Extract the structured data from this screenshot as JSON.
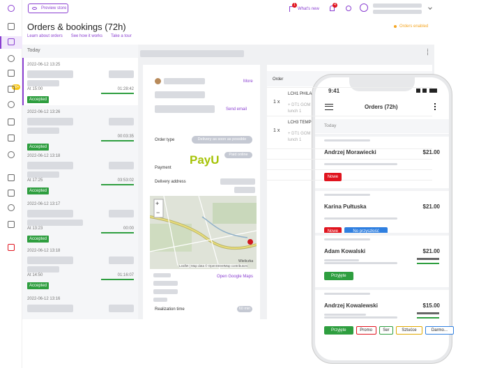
{
  "topbar": {
    "preview_store": "Preview store",
    "whats_new": "What's new",
    "whats_new_badge": "1",
    "bell_badge": "4"
  },
  "sidebar": {
    "badge": "50+"
  },
  "header": {
    "title": "Orders & bookings (72h)",
    "links": [
      "Learn about orders",
      "See how it works",
      "Take a tour"
    ],
    "status": "Orders enabled"
  },
  "orders_list": {
    "section": "Today",
    "orders": [
      {
        "date": "2022-06-12 13:25",
        "time": "At 15:00",
        "timer": "01:28:42",
        "status": "Accepted"
      },
      {
        "date": "2022-06-12 13:26",
        "timer": "00:03:35",
        "status": "Accepted"
      },
      {
        "date": "2022-06-12 13:18",
        "time": "At 17:25",
        "timer": "03:53:02",
        "status": "Accepted"
      },
      {
        "date": "2022-06-12 13:17",
        "time": "At 13:23",
        "timer": "00:00",
        "status": "Accepted"
      },
      {
        "date": "2022-06-12 13:18",
        "time": "At 14:50",
        "timer": "01:16:07",
        "status": "Accepted"
      },
      {
        "date": "2022-06-12 13:16"
      }
    ]
  },
  "details": {
    "more": "More",
    "send_email": "Send email",
    "order_type_label": "Order type",
    "order_type": "Delivery as soon as possible",
    "payu": "PayU",
    "paid": "Paid online",
    "payment_label": "Payment",
    "address_label": "Delivery address",
    "map_zoom_in": "+",
    "map_zoom_out": "−",
    "map_place": "Wieliczka",
    "map_credit": "Leaflet | Map data © OpenStreetMap contributors",
    "open_maps": "Open Google Maps",
    "realization_label": "Realization time",
    "realization": "60 min"
  },
  "order_table": {
    "header": "Order",
    "items": [
      {
        "qty": "1 x",
        "name": "LCH1 PHILA",
        "extra": "+ DT1 GOM",
        "note": "lunch 1"
      },
      {
        "qty": "1 x",
        "name": "LCH3 TEMP",
        "extra": "+ DT1 GOM",
        "note": "lunch 1"
      }
    ]
  },
  "phone": {
    "time": "9:41",
    "title": "Orders (72h)",
    "section": "Today",
    "orders": [
      {
        "name": "Andrzej Morawiecki",
        "price": "$21.00",
        "tags": [
          {
            "label": "Nowe",
            "color": "#e0141e",
            "filled": true
          }
        ]
      },
      {
        "name": "Karina Pułtuska",
        "price": "$21.00",
        "tags": [
          {
            "label": "Nowe",
            "color": "#e0141e",
            "filled": true
          },
          {
            "label": "No przyszłość",
            "color": "#2f7fe0",
            "filled": true
          }
        ]
      },
      {
        "name": "Adam Kowalski",
        "price": "$21.00",
        "tags": [
          {
            "label": "Przyjęte",
            "color": "#2e9e3f",
            "filled": true
          }
        ]
      },
      {
        "name": "Andrzej Kowalewski",
        "price": "$15.00",
        "tags": [
          {
            "label": "Przyjęte",
            "color": "#2e9e3f",
            "filled": true
          },
          {
            "label": "Promo",
            "color": "#e0141e",
            "filled": false
          },
          {
            "label": "Ser",
            "color": "#2e9e3f",
            "filled": false
          },
          {
            "label": "Sztućce",
            "color": "#e0a800",
            "filled": false
          },
          {
            "label": "Darmo...",
            "color": "#2f7fe0",
            "filled": false
          }
        ]
      }
    ]
  }
}
